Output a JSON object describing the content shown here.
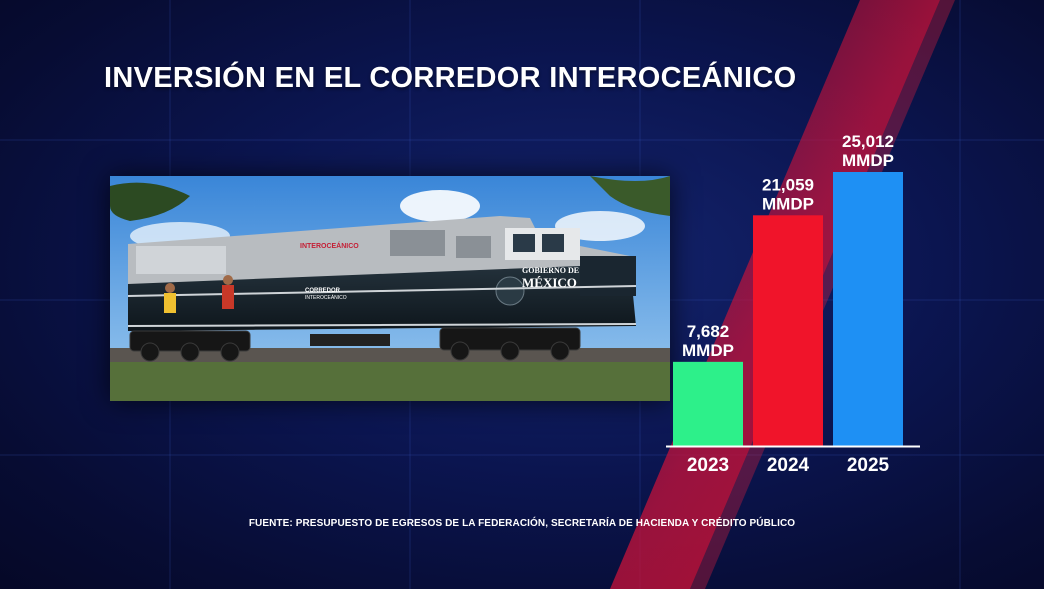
{
  "title": "INVERSIÓN EN EL CORREDOR INTEROCEÁNICO",
  "photo": {
    "texts": [
      "INTEROCEÁNICO",
      "GOBIERNO DE",
      "MÉXICO",
      "CORREDOR",
      "INTEROCEÁNICO"
    ]
  },
  "chart_data": {
    "type": "bar",
    "title": "INVERSIÓN EN EL CORREDOR INTEROCEÁNICO",
    "categories": [
      "2023",
      "2024",
      "2025"
    ],
    "values": [
      7682,
      21059,
      25012
    ],
    "value_labels": [
      "7,682",
      "21,059",
      "25,012"
    ],
    "unit_label": "MMDP",
    "colors": [
      "#2df08a",
      "#f0142a",
      "#1e90f4"
    ],
    "ylim": [
      0,
      25012
    ],
    "grid": false,
    "legend": "none"
  },
  "source": "FUENTE: PRESUPUESTO DE EGRESOS DE LA FEDERACIÓN, SECRETARÍA DE HACIENDA Y CRÉDITO PÚBLICO"
}
